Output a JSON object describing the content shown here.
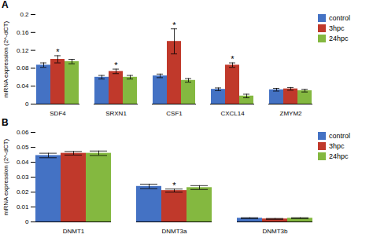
{
  "chart_data": [
    {
      "type": "bar",
      "title": "A",
      "categories": [
        "SDF4",
        "SRXN1",
        "CSF1",
        "CXCL14",
        "ZMYM2"
      ],
      "series": [
        {
          "name": "control",
          "color": "#4472C4",
          "values": [
            0.087,
            0.06,
            0.063,
            0.033,
            0.032
          ],
          "errors": [
            0.005,
            0.004,
            0.004,
            0.003,
            0.003
          ]
        },
        {
          "name": "3hpc",
          "color": "#C0392B",
          "values": [
            0.1,
            0.073,
            0.14,
            0.087,
            0.034
          ],
          "errors": [
            0.008,
            0.005,
            0.028,
            0.005,
            0.003
          ]
        },
        {
          "name": "24hpc",
          "color": "#84B840",
          "values": [
            0.095,
            0.06,
            0.053,
            0.018,
            0.03
          ],
          "errors": [
            0.005,
            0.004,
            0.004,
            0.004,
            0.003
          ]
        }
      ],
      "annotations": [
        {
          "category": "SDF4",
          "series": "3hpc",
          "text": "*"
        },
        {
          "category": "SRXN1",
          "series": "3hpc",
          "text": "*"
        },
        {
          "category": "CSF1",
          "series": "3hpc",
          "text": "*"
        },
        {
          "category": "CXCL14",
          "series": "3hpc",
          "text": "*"
        }
      ],
      "ylabel": "mRNA expression (2^-dCT)",
      "ylim": [
        0,
        0.2
      ],
      "yticks": [
        0,
        0.04,
        0.08,
        0.12,
        0.16,
        0.2
      ],
      "legend": "right"
    },
    {
      "type": "bar",
      "title": "B",
      "categories": [
        "DNMT1",
        "DNMT3a",
        "DNMT3b"
      ],
      "series": [
        {
          "name": "control",
          "color": "#4472C4",
          "values": [
            0.0445,
            0.0238,
            0.0025
          ],
          "errors": [
            0.0015,
            0.0015,
            0.0003
          ]
        },
        {
          "name": "3hpc",
          "color": "#C0392B",
          "values": [
            0.046,
            0.021,
            0.002
          ],
          "errors": [
            0.0012,
            0.001,
            0.0003
          ]
        },
        {
          "name": "24hpc",
          "color": "#84B840",
          "values": [
            0.046,
            0.023,
            0.0025
          ],
          "errors": [
            0.0015,
            0.0013,
            0.0003
          ]
        }
      ],
      "annotations": [
        {
          "category": "DNMT3a",
          "series": "3hpc",
          "text": "*"
        }
      ],
      "ylabel": "mRNA expression (2^-dCT)",
      "ylim": [
        0,
        0.06
      ],
      "yticks": [
        0,
        0.01,
        0.02,
        0.03,
        0.04,
        0.05,
        0.06
      ],
      "legend": "right"
    }
  ]
}
